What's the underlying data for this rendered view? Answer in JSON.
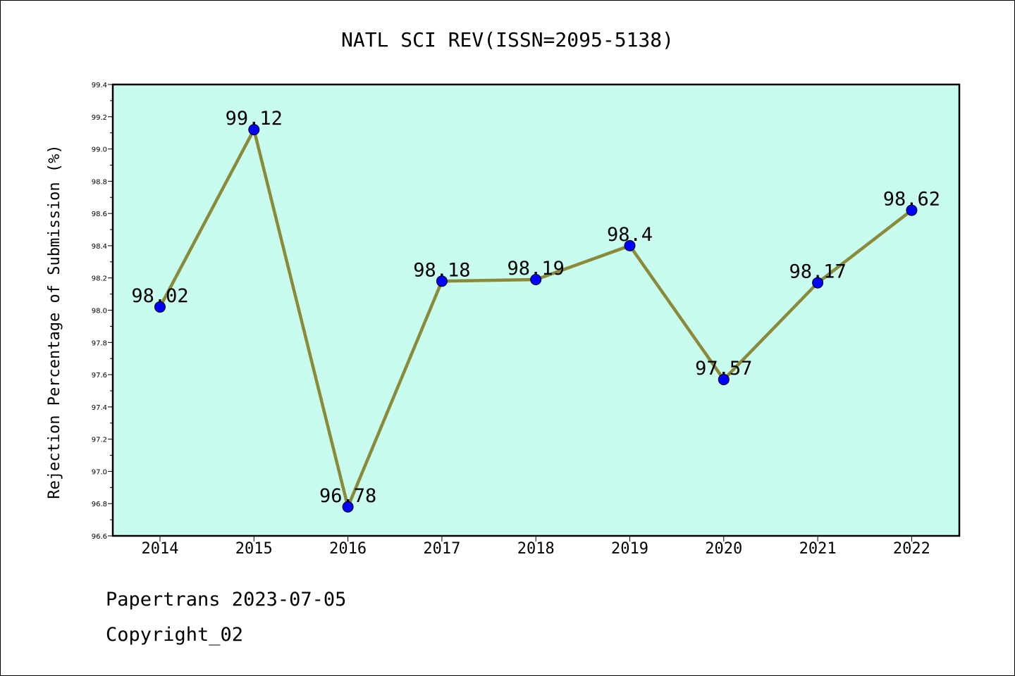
{
  "chart_data": {
    "type": "line",
    "title": "NATL SCI REV(ISSN=2095-5138)",
    "xlabel": "",
    "ylabel": "Rejection Percentage of Submission (%)",
    "categories": [
      "2014",
      "2015",
      "2016",
      "2017",
      "2018",
      "2019",
      "2020",
      "2021",
      "2022"
    ],
    "values": [
      98.02,
      99.12,
      96.78,
      98.18,
      98.19,
      98.4,
      97.57,
      98.17,
      98.62
    ],
    "data_labels": [
      "98.02",
      "99.12",
      "96.78",
      "98.18",
      "98.19",
      "98.4",
      "97.57",
      "98.17",
      "98.62"
    ],
    "ylim": [
      96.6,
      99.4
    ],
    "yticks": [
      "96.6",
      "96.8",
      "97.0",
      "97.2",
      "97.4",
      "97.6",
      "97.8",
      "98.0",
      "98.2",
      "98.4",
      "98.6",
      "98.8",
      "99.0",
      "99.2",
      "99.4"
    ],
    "grid": false,
    "colors": {
      "plot_background": "#c8fcee",
      "line": "#8b8a3a",
      "marker": "#0000ff"
    }
  },
  "footer": {
    "line1": "Papertrans 2023-07-05",
    "line2": "Copyright_02"
  }
}
